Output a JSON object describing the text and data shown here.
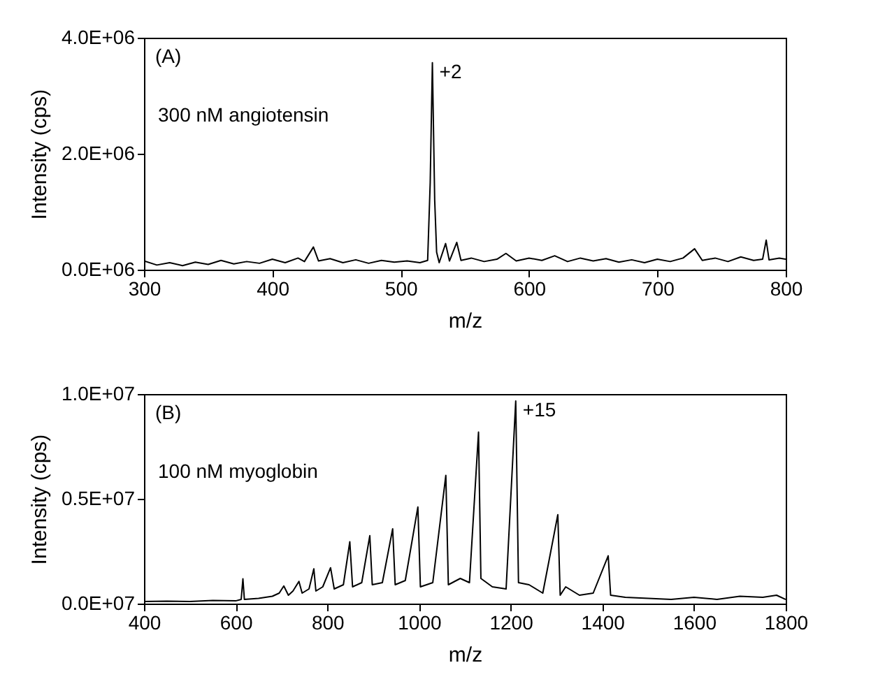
{
  "chart_data": [
    {
      "type": "line",
      "xlabel": "m/z",
      "ylabel": "Intensity (cps)",
      "xlim": [
        300,
        800
      ],
      "xticks": [
        300,
        400,
        500,
        600,
        700,
        800
      ],
      "ylim": [
        0,
        4000000
      ],
      "yticks": [
        {
          "value": 0,
          "label": "0.0E+06"
        },
        {
          "value": 2000000,
          "label": "2.0E+06"
        },
        {
          "value": 4000000,
          "label": "4.0E+06"
        }
      ],
      "annotations": [
        "(A)",
        "300 nM angiotensin",
        {
          "text": "+2",
          "x": 524.7,
          "y": 3570000
        }
      ],
      "series": [
        {
          "color": "#000000",
          "x": [
            300,
            310,
            320,
            330,
            340,
            350,
            360,
            370,
            380,
            390,
            400,
            410,
            420,
            425,
            432,
            436,
            445,
            455,
            465,
            475,
            485,
            495,
            505,
            515,
            521,
            523,
            524.7,
            526.5,
            528,
            530,
            535,
            538,
            543.7,
            547,
            555,
            565,
            575,
            582,
            590,
            600,
            610,
            620,
            630,
            640,
            650,
            660,
            670,
            680,
            690,
            700,
            710,
            720,
            729,
            735,
            745,
            755,
            765,
            775,
            782,
            784.8,
            787,
            795,
            800
          ],
          "values": [
            150000,
            80000,
            120000,
            70000,
            130000,
            90000,
            160000,
            100000,
            140000,
            110000,
            180000,
            120000,
            200000,
            140000,
            390000,
            150000,
            190000,
            120000,
            170000,
            110000,
            160000,
            130000,
            150000,
            120000,
            160000,
            1500000,
            3570000,
            1200000,
            300000,
            120000,
            450000,
            150000,
            470000,
            160000,
            200000,
            140000,
            180000,
            280000,
            150000,
            200000,
            160000,
            240000,
            140000,
            200000,
            150000,
            190000,
            130000,
            170000,
            120000,
            180000,
            140000,
            200000,
            360000,
            160000,
            200000,
            140000,
            220000,
            160000,
            180000,
            510000,
            170000,
            200000,
            180000
          ]
        }
      ]
    },
    {
      "type": "line",
      "xlabel": "m/z",
      "ylabel": "Intensity (cps)",
      "xlim": [
        400,
        1800
      ],
      "xticks": [
        400,
        600,
        800,
        1000,
        1200,
        1400,
        1600,
        1800
      ],
      "ylim": [
        0,
        10000000
      ],
      "yticks": [
        {
          "value": 0,
          "label": "0.0E+07"
        },
        {
          "value": 5000000,
          "label": "0.5E+07"
        },
        {
          "value": 10000000,
          "label": "1.0E+07"
        }
      ],
      "annotations": [
        "(B)",
        "100 nM myoglobin",
        {
          "text": "+15",
          "x": 1211,
          "y": 9670000
        }
      ],
      "series": [
        {
          "color": "#000000",
          "x": [
            400,
            450,
            500,
            550,
            600,
            612,
            615.8,
            619,
            650,
            680,
            695,
            705,
            715,
            725,
            738,
            745,
            760,
            770.5,
            775,
            790,
            807,
            815,
            835,
            849,
            855,
            875,
            892.6,
            898,
            920,
            942.5,
            948,
            970,
            997.5,
            1003,
            1030,
            1058.5,
            1064,
            1090,
            1110,
            1129.8,
            1135,
            1160,
            1190,
            1211,
            1217,
            1240,
            1270,
            1302.8,
            1308,
            1320,
            1350,
            1380,
            1412.7,
            1418,
            1450,
            1500,
            1550,
            1600,
            1650,
            1700,
            1750,
            1780,
            1800
          ],
          "values": [
            100000,
            120000,
            100000,
            150000,
            130000,
            200000,
            1180000,
            200000,
            250000,
            350000,
            500000,
            840000,
            400000,
            600000,
            1060000,
            500000,
            700000,
            1660000,
            600000,
            800000,
            1710000,
            700000,
            900000,
            2950000,
            800000,
            1000000,
            3240000,
            900000,
            1000000,
            3570000,
            900000,
            1100000,
            4610000,
            800000,
            1000000,
            6120000,
            900000,
            1200000,
            1000000,
            8180000,
            1200000,
            800000,
            700000,
            9670000,
            1000000,
            900000,
            500000,
            4240000,
            400000,
            800000,
            400000,
            500000,
            2280000,
            400000,
            300000,
            250000,
            200000,
            300000,
            200000,
            350000,
            300000,
            400000,
            200000
          ]
        }
      ]
    }
  ]
}
